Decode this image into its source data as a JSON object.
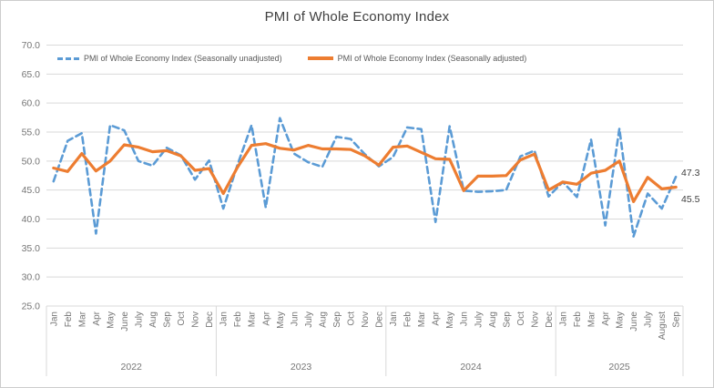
{
  "header": {
    "title": "PMI of Whole Economy Index"
  },
  "chart_data": {
    "type": "line",
    "title": "PMI of Whole Economy Index",
    "grid": true,
    "legend_position": "top",
    "y_axis": {
      "min": 25.0,
      "max": 70.0,
      "tick_step": 5.0,
      "tick_labels": [
        "70.0",
        "65.0",
        "60.0",
        "55.0",
        "50.0",
        "45.0",
        "40.0",
        "35.0",
        "30.0",
        "25.0"
      ]
    },
    "x_axis": {
      "months": [
        "Jan",
        "Feb",
        "Mar",
        "Apr",
        "May",
        "June",
        "July",
        "Aug",
        "Sep",
        "Oct",
        "Nov",
        "Dec",
        "Jan",
        "Feb",
        "Mar",
        "Apr",
        "May",
        "Jun",
        "July",
        "Aug",
        "Sep",
        "Oct",
        "Nov",
        "Dec",
        "Jan",
        "Feb",
        "Mar",
        "Apr",
        "May",
        "Jun",
        "July",
        "Aug",
        "Sep",
        "Oct",
        "Nov",
        "Dec",
        "Jan",
        "Feb",
        "Mar",
        "Apr",
        "May",
        "June",
        "July",
        "August",
        "Sep"
      ],
      "year_groups": [
        {
          "label": "2022",
          "count": 12
        },
        {
          "label": "2023",
          "count": 12
        },
        {
          "label": "2024",
          "count": 12
        },
        {
          "label": "2025",
          "count": 9
        }
      ]
    },
    "series": [
      {
        "name": "PMI of Whole Economy Index (Seasonally unadjusted)",
        "color": "#5B9BD5",
        "style": "dashed",
        "values": [
          46.5,
          53.5,
          54.8,
          37.5,
          56.2,
          55.3,
          50.0,
          49.2,
          52.3,
          51.0,
          46.8,
          50.1,
          41.8,
          49.3,
          56.2,
          42.0,
          57.4,
          51.3,
          49.8,
          49.0,
          54.2,
          53.8,
          51.2,
          49.1,
          50.7,
          55.8,
          55.5,
          39.5,
          56.0,
          44.9,
          44.7,
          44.8,
          45.0,
          50.8,
          51.8,
          43.9,
          46.4,
          43.8,
          53.7,
          38.9,
          55.6,
          37.0,
          44.4,
          41.8,
          47.3
        ]
      },
      {
        "name": "PMI of Whole Economy Index (Seasonally adjusted)",
        "color": "#ED7D31",
        "style": "solid",
        "values": [
          48.8,
          48.2,
          51.3,
          48.3,
          50.0,
          52.8,
          52.4,
          51.6,
          51.8,
          50.9,
          48.4,
          48.7,
          44.4,
          48.9,
          52.7,
          53.0,
          52.2,
          51.9,
          52.7,
          52.1,
          52.1,
          52.0,
          50.9,
          49.3,
          52.4,
          52.6,
          51.5,
          50.4,
          50.3,
          44.9,
          47.4,
          47.4,
          47.5,
          50.2,
          51.2,
          45.0,
          46.4,
          46.0,
          47.9,
          48.4,
          50.0,
          43.0,
          47.2,
          45.2,
          45.5
        ]
      }
    ],
    "end_labels": [
      {
        "text": "47.3",
        "series": "PMI of Whole Economy Index (Seasonally unadjusted)"
      },
      {
        "text": "45.5",
        "series": "PMI of Whole Economy Index (Seasonally adjusted)"
      }
    ]
  },
  "colors": {
    "unadjusted": "#5B9BD5",
    "adjusted": "#ED7D31",
    "gridline": "#d9d9d9",
    "axis_text": "#757575",
    "title_text": "#404040"
  }
}
